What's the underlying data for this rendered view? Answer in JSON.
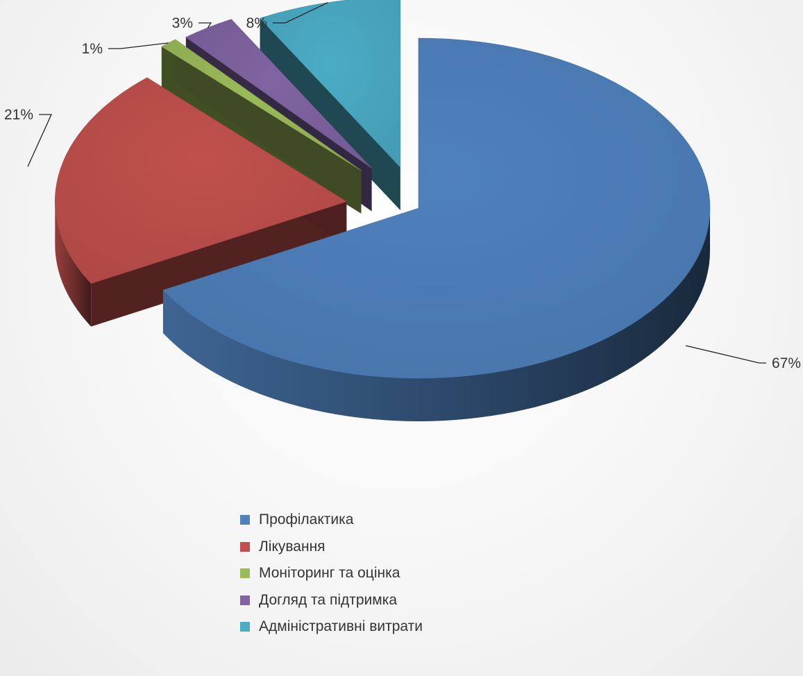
{
  "chart_data": {
    "type": "pie",
    "variant": "exploded-3d",
    "title": "",
    "categories": [
      "Профілактика",
      "Лікування",
      "Моніторинг та оцінка",
      "Догляд та підтримка",
      "Адміністративні витрати"
    ],
    "values": [
      67,
      21,
      1,
      3,
      8
    ],
    "value_labels": [
      "67%",
      "21%",
      "1%",
      "3%",
      "8%"
    ],
    "colors": [
      "#4f81bd",
      "#c0504d",
      "#9bbb59",
      "#8064a2",
      "#4bacc6"
    ],
    "legend_position": "bottom"
  }
}
